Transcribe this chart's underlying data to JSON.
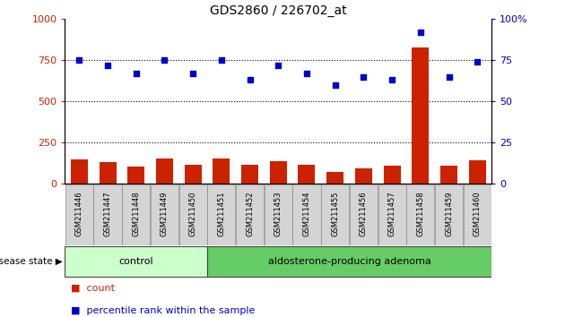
{
  "title": "GDS2860 / 226702_at",
  "samples": [
    "GSM211446",
    "GSM211447",
    "GSM211448",
    "GSM211449",
    "GSM211450",
    "GSM211451",
    "GSM211452",
    "GSM211453",
    "GSM211454",
    "GSM211455",
    "GSM211456",
    "GSM211457",
    "GSM211458",
    "GSM211459",
    "GSM211460"
  ],
  "counts": [
    150,
    130,
    105,
    155,
    115,
    155,
    115,
    135,
    115,
    75,
    95,
    110,
    830,
    110,
    145
  ],
  "percentiles": [
    75,
    72,
    67,
    75,
    67,
    75,
    63,
    72,
    67,
    60,
    65,
    63,
    92,
    65,
    74
  ],
  "control_count": 5,
  "groups": [
    "control",
    "aldosterone-producing adenoma"
  ],
  "control_color": "#ccffcc",
  "adenoma_color": "#66cc66",
  "bar_color": "#cc2200",
  "dot_color": "#0000cc",
  "ylim_left": [
    0,
    1000
  ],
  "ylim_right": [
    0,
    100
  ],
  "yticks_left": [
    0,
    250,
    500,
    750,
    1000
  ],
  "yticks_right": [
    0,
    25,
    50,
    75,
    100
  ],
  "grid_lines": [
    250,
    500,
    750
  ],
  "legend_count": "count",
  "legend_pct": "percentile rank within the sample",
  "disease_state_label": "disease state"
}
